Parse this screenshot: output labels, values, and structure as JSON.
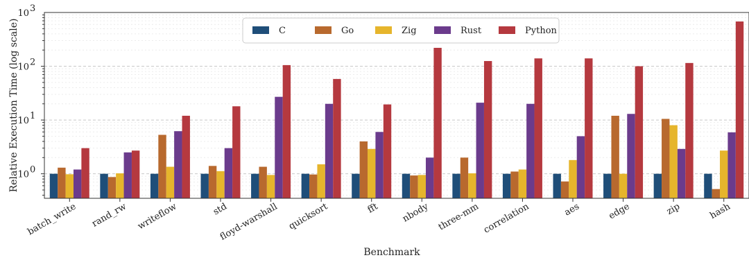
{
  "chart_data": {
    "type": "bar",
    "xlabel": "Benchmark",
    "ylabel": "Relative Execution Time (log scale)",
    "yscale": "log",
    "ylim": [
      0.35,
      1000
    ],
    "grid": "horizontal dashed",
    "legend_position": "top-center",
    "y_ticks": [
      {
        "value": 1,
        "label": "10",
        "exp": "0"
      },
      {
        "value": 10,
        "label": "10",
        "exp": "1"
      },
      {
        "value": 100,
        "label": "10",
        "exp": "2"
      },
      {
        "value": 1000,
        "label": "10",
        "exp": "3"
      }
    ],
    "categories": [
      "batch_write",
      "rand_rw",
      "writeflow",
      "std",
      "floyd-warshall",
      "quicksort",
      "fft",
      "nbody",
      "three-mm",
      "correlation",
      "aes",
      "edge",
      "zip",
      "hash"
    ],
    "series": [
      {
        "name": "C",
        "color": "#1f4e79",
        "values": [
          1,
          1,
          1,
          1,
          1,
          1,
          1,
          1,
          1,
          1,
          1,
          1,
          1,
          1
        ]
      },
      {
        "name": "Go",
        "color": "#b8692e",
        "values": [
          1.3,
          0.87,
          5.3,
          1.4,
          1.35,
          0.97,
          4.0,
          0.93,
          2.0,
          1.1,
          0.72,
          12,
          10.5,
          0.52
        ]
      },
      {
        "name": "Zig",
        "color": "#e6b52c",
        "values": [
          0.98,
          1.02,
          1.35,
          1.12,
          0.95,
          1.5,
          2.9,
          0.95,
          1.02,
          1.2,
          1.8,
          1.0,
          8.0,
          2.7
        ]
      },
      {
        "name": "Rust",
        "color": "#6b3b8c",
        "values": [
          1.2,
          2.5,
          6.2,
          3.0,
          27,
          20,
          6.0,
          2.0,
          21,
          20,
          5.0,
          13,
          2.9,
          5.9
        ]
      },
      {
        "name": "Python",
        "color": "#b5393f",
        "values": [
          3.0,
          2.7,
          12,
          18,
          105,
          58,
          19.5,
          220,
          125,
          140,
          140,
          100,
          115,
          680
        ]
      }
    ]
  }
}
